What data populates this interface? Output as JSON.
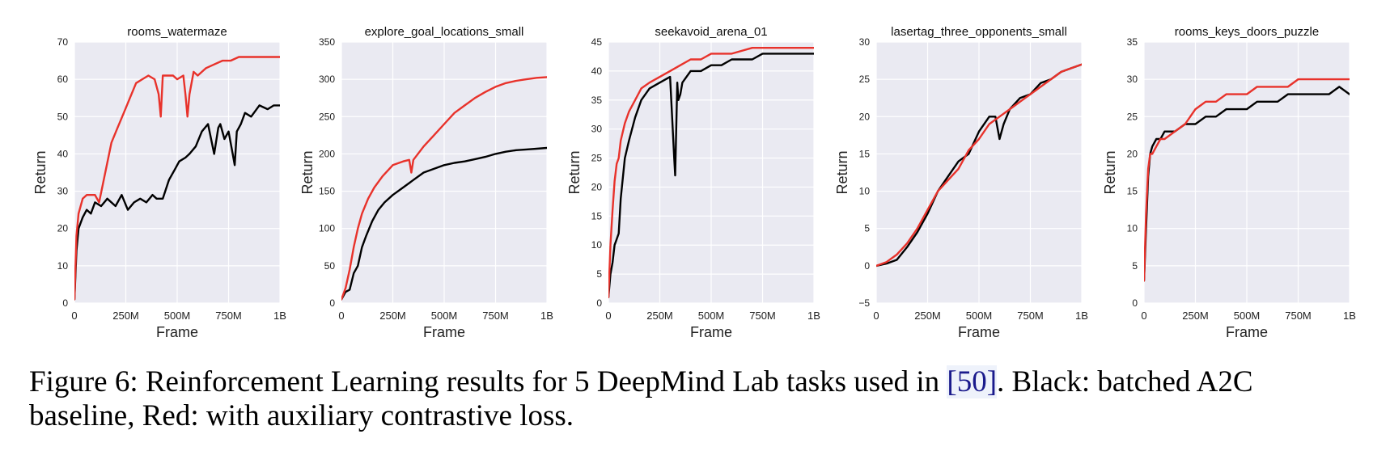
{
  "caption": {
    "prefix": "Figure 6: Reinforcement Learning results for 5 DeepMind Lab tasks used in ",
    "ref": "[50]",
    "suffix": ". Black: batched A2C baseline, Red: with auxiliary contrastive loss."
  },
  "colors": {
    "baseline": "#000000",
    "contrastive": "#e8322b",
    "panel_bg": "#eaeaf2",
    "grid": "#ffffff"
  },
  "chart_data": [
    {
      "type": "line",
      "title": "rooms_watermaze",
      "xlabel": "Frame",
      "ylabel": "Return",
      "xlim": [
        0,
        1000
      ],
      "ylim": [
        0,
        70
      ],
      "xticks": [
        0,
        250,
        500,
        750,
        1000
      ],
      "xticklabels": [
        "0",
        "250M",
        "500M",
        "750M",
        "1B"
      ],
      "yticks": [
        0,
        10,
        20,
        30,
        40,
        50,
        60,
        70
      ],
      "grid": true,
      "series": [
        {
          "color": "#000000",
          "x": [
            0,
            10,
            20,
            40,
            60,
            80,
            100,
            130,
            160,
            200,
            230,
            260,
            290,
            320,
            350,
            380,
            400,
            430,
            460,
            490,
            510,
            540,
            560,
            590,
            620,
            650,
            680,
            700,
            710,
            730,
            750,
            770,
            780,
            790,
            810,
            830,
            860,
            900,
            940,
            970,
            1000
          ],
          "y": [
            1,
            14,
            20,
            23,
            25,
            24,
            27,
            26,
            28,
            26,
            29,
            25,
            27,
            28,
            27,
            29,
            28,
            28,
            33,
            36,
            38,
            39,
            40,
            42,
            46,
            48,
            40,
            47,
            48,
            44,
            46,
            40,
            37,
            46,
            48,
            51,
            50,
            53,
            52,
            53,
            53
          ]
        },
        {
          "color": "#e8322b",
          "x": [
            0,
            10,
            20,
            40,
            60,
            80,
            100,
            120,
            150,
            180,
            210,
            240,
            270,
            300,
            330,
            360,
            390,
            410,
            420,
            430,
            450,
            480,
            500,
            530,
            540,
            550,
            560,
            580,
            600,
            640,
            680,
            720,
            760,
            800,
            850,
            900,
            950,
            1000
          ],
          "y": [
            1,
            18,
            24,
            28,
            29,
            29,
            29,
            27,
            35,
            43,
            47,
            51,
            55,
            59,
            60,
            61,
            60,
            56,
            50,
            61,
            61,
            61,
            60,
            61,
            56,
            50,
            56,
            62,
            61,
            63,
            64,
            65,
            65,
            66,
            66,
            66,
            66,
            66
          ]
        }
      ]
    },
    {
      "type": "line",
      "title": "explore_goal_locations_small",
      "xlabel": "Frame",
      "ylabel": "Return",
      "xlim": [
        0,
        1000
      ],
      "ylim": [
        0,
        350
      ],
      "xticks": [
        0,
        250,
        500,
        750,
        1000
      ],
      "xticklabels": [
        "0",
        "250M",
        "500M",
        "750M",
        "1B"
      ],
      "yticks": [
        0,
        50,
        100,
        150,
        200,
        250,
        300,
        350
      ],
      "grid": true,
      "series": [
        {
          "color": "#000000",
          "x": [
            0,
            20,
            40,
            60,
            80,
            100,
            120,
            150,
            180,
            210,
            250,
            300,
            350,
            400,
            450,
            500,
            550,
            600,
            650,
            700,
            750,
            800,
            850,
            900,
            950,
            1000
          ],
          "y": [
            5,
            15,
            18,
            40,
            50,
            75,
            90,
            110,
            125,
            135,
            145,
            155,
            165,
            175,
            180,
            185,
            188,
            190,
            193,
            196,
            200,
            203,
            205,
            206,
            207,
            208
          ]
        },
        {
          "color": "#e8322b",
          "x": [
            0,
            20,
            40,
            60,
            80,
            100,
            130,
            160,
            200,
            250,
            300,
            330,
            340,
            350,
            400,
            450,
            500,
            550,
            600,
            650,
            700,
            750,
            800,
            850,
            900,
            950,
            1000
          ],
          "y": [
            5,
            20,
            45,
            75,
            100,
            120,
            140,
            155,
            170,
            185,
            190,
            192,
            175,
            192,
            210,
            225,
            240,
            255,
            265,
            275,
            283,
            290,
            295,
            298,
            300,
            302,
            303
          ]
        }
      ]
    },
    {
      "type": "line",
      "title": "seekavoid_arena_01",
      "xlabel": "Frame",
      "ylabel": "Return",
      "xlim": [
        0,
        1000
      ],
      "ylim": [
        0,
        45
      ],
      "xticks": [
        0,
        250,
        500,
        750,
        1000
      ],
      "xticklabels": [
        "0",
        "250M",
        "500M",
        "750M",
        "1B"
      ],
      "yticks": [
        0,
        5,
        10,
        15,
        20,
        25,
        30,
        35,
        40,
        45
      ],
      "grid": true,
      "series": [
        {
          "color": "#000000",
          "x": [
            0,
            10,
            20,
            30,
            40,
            50,
            60,
            80,
            100,
            130,
            160,
            200,
            250,
            300,
            320,
            325,
            330,
            335,
            340,
            350,
            360,
            380,
            400,
            450,
            500,
            550,
            600,
            650,
            700,
            750,
            800,
            850,
            900,
            950,
            1000
          ],
          "y": [
            1,
            5,
            7,
            10,
            11,
            12,
            18,
            25,
            28,
            32,
            35,
            37,
            38,
            39,
            25,
            22,
            30,
            38,
            35,
            36,
            38,
            39,
            40,
            40,
            41,
            41,
            42,
            42,
            42,
            43,
            43,
            43,
            43,
            43,
            43
          ]
        },
        {
          "color": "#e8322b",
          "x": [
            0,
            10,
            20,
            30,
            40,
            50,
            60,
            80,
            100,
            130,
            160,
            200,
            250,
            300,
            350,
            400,
            450,
            500,
            600,
            700,
            800,
            900,
            1000
          ],
          "y": [
            1,
            10,
            16,
            21,
            24,
            25,
            28,
            31,
            33,
            35,
            37,
            38,
            39,
            40,
            41,
            42,
            42,
            43,
            43,
            44,
            44,
            44,
            44
          ]
        }
      ]
    },
    {
      "type": "line",
      "title": "lasertag_three_opponents_small",
      "xlabel": "Frame",
      "ylabel": "Return",
      "xlim": [
        0,
        1000
      ],
      "ylim": [
        -5,
        30
      ],
      "xticks": [
        0,
        250,
        500,
        750,
        1000
      ],
      "xticklabels": [
        "0",
        "250M",
        "500M",
        "750M",
        "1B"
      ],
      "yticks": [
        -5,
        0,
        5,
        10,
        15,
        20,
        25,
        30
      ],
      "yticklabels": [
        "−5",
        "0",
        "5",
        "10",
        "15",
        "20",
        "25",
        "30"
      ],
      "grid": true,
      "series": [
        {
          "color": "#000000",
          "x": [
            0,
            50,
            100,
            150,
            200,
            250,
            300,
            350,
            400,
            450,
            500,
            550,
            580,
            600,
            620,
            650,
            700,
            750,
            800,
            850,
            900,
            950,
            1000
          ],
          "y": [
            0,
            0.3,
            0.8,
            2.5,
            4.5,
            7,
            10,
            12,
            14,
            15,
            18,
            20,
            20,
            17,
            19,
            21,
            22.5,
            23,
            24.5,
            25,
            26,
            26.5,
            27
          ]
        },
        {
          "color": "#e8322b",
          "x": [
            0,
            50,
            100,
            150,
            200,
            250,
            300,
            350,
            400,
            450,
            500,
            550,
            600,
            650,
            700,
            750,
            800,
            850,
            900,
            950,
            1000
          ],
          "y": [
            0,
            0.5,
            1.5,
            3,
            5,
            7.5,
            10,
            11.5,
            13,
            15.5,
            17,
            19,
            20,
            21,
            22,
            23,
            24,
            25,
            26,
            26.5,
            27
          ]
        }
      ]
    },
    {
      "type": "line",
      "title": "rooms_keys_doors_puzzle",
      "xlabel": "Frame",
      "ylabel": "Return",
      "xlim": [
        0,
        1000
      ],
      "ylim": [
        0,
        35
      ],
      "xticks": [
        0,
        250,
        500,
        750,
        1000
      ],
      "xticklabels": [
        "0",
        "250M",
        "500M",
        "750M",
        "1B"
      ],
      "yticks": [
        0,
        5,
        10,
        15,
        20,
        25,
        30,
        35
      ],
      "grid": true,
      "series": [
        {
          "color": "#000000",
          "x": [
            0,
            10,
            20,
            30,
            40,
            60,
            80,
            100,
            150,
            200,
            250,
            300,
            350,
            400,
            450,
            500,
            550,
            600,
            650,
            700,
            750,
            800,
            850,
            900,
            950,
            1000
          ],
          "y": [
            3,
            10,
            17,
            20,
            21,
            22,
            22,
            23,
            23,
            24,
            24,
            25,
            25,
            26,
            26,
            26,
            27,
            27,
            27,
            28,
            28,
            28,
            28,
            28,
            29,
            28
          ]
        },
        {
          "color": "#e8322b",
          "x": [
            0,
            10,
            20,
            30,
            40,
            60,
            80,
            100,
            150,
            200,
            250,
            300,
            350,
            400,
            450,
            500,
            550,
            600,
            650,
            700,
            750,
            800,
            850,
            900,
            950,
            1000
          ],
          "y": [
            3,
            12,
            18,
            20,
            20,
            21,
            22,
            22,
            23,
            24,
            26,
            27,
            27,
            28,
            28,
            28,
            29,
            29,
            29,
            29,
            30,
            30,
            30,
            30,
            30,
            30
          ]
        }
      ]
    }
  ]
}
